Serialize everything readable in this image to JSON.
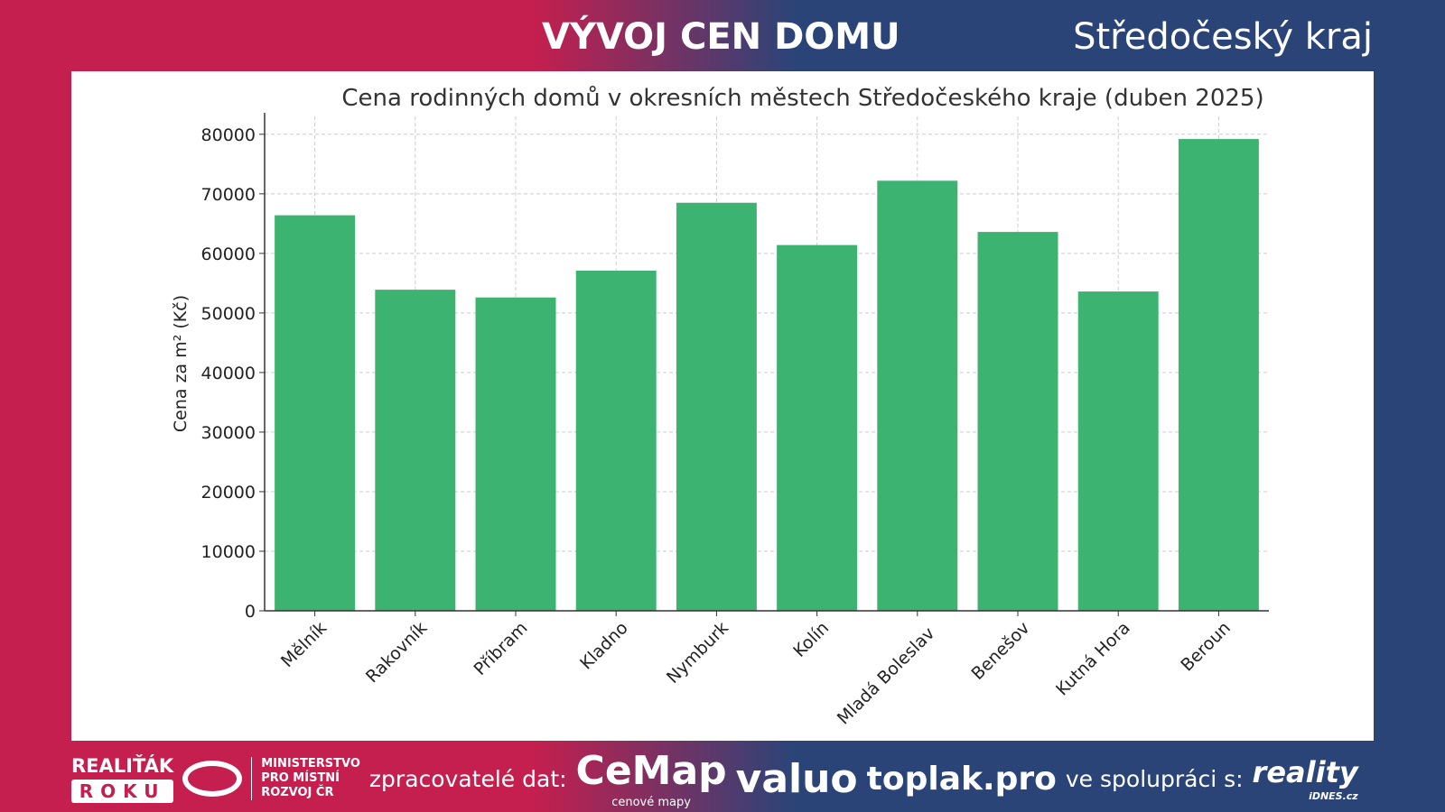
{
  "header": {
    "title": "VÝVOJ CEN DOMU",
    "region": "Středočeský kraj"
  },
  "chart_data": {
    "type": "bar",
    "title": "Cena rodinných domů v okresních městech Středočeského kraje (duben 2025)",
    "xlabel": "",
    "ylabel": "Cena za m² (Kč)",
    "categories": [
      "Mělník",
      "Rakovník",
      "Příbram",
      "Kladno",
      "Nymburk",
      "Kolín",
      "Mladá Boleslav",
      "Benešov",
      "Kutná Hora",
      "Beroun"
    ],
    "values": [
      66400,
      53900,
      52600,
      57100,
      68500,
      61400,
      72200,
      63600,
      53600,
      79200
    ],
    "ylim": [
      0,
      83000
    ],
    "yticks": [
      0,
      10000,
      20000,
      30000,
      40000,
      50000,
      60000,
      70000,
      80000
    ],
    "grid": true,
    "bar_color": "#3cb371"
  },
  "footer": {
    "realitak": "REALIŤÁK",
    "roku": "ROKU",
    "mmr": [
      "MINISTERSTVO",
      "PRO MÍSTNÍ",
      "ROZVOJ ČR"
    ],
    "processors": "zpracovatelé dat:",
    "cemap": "CeMap",
    "cemap_sub": "cenové mapy",
    "valuo": "valuo",
    "toplak": "toplak.pro",
    "cooperation": "ve spolupráci s:",
    "reality": "reality",
    "reality_sub": "iDNES.cz"
  }
}
